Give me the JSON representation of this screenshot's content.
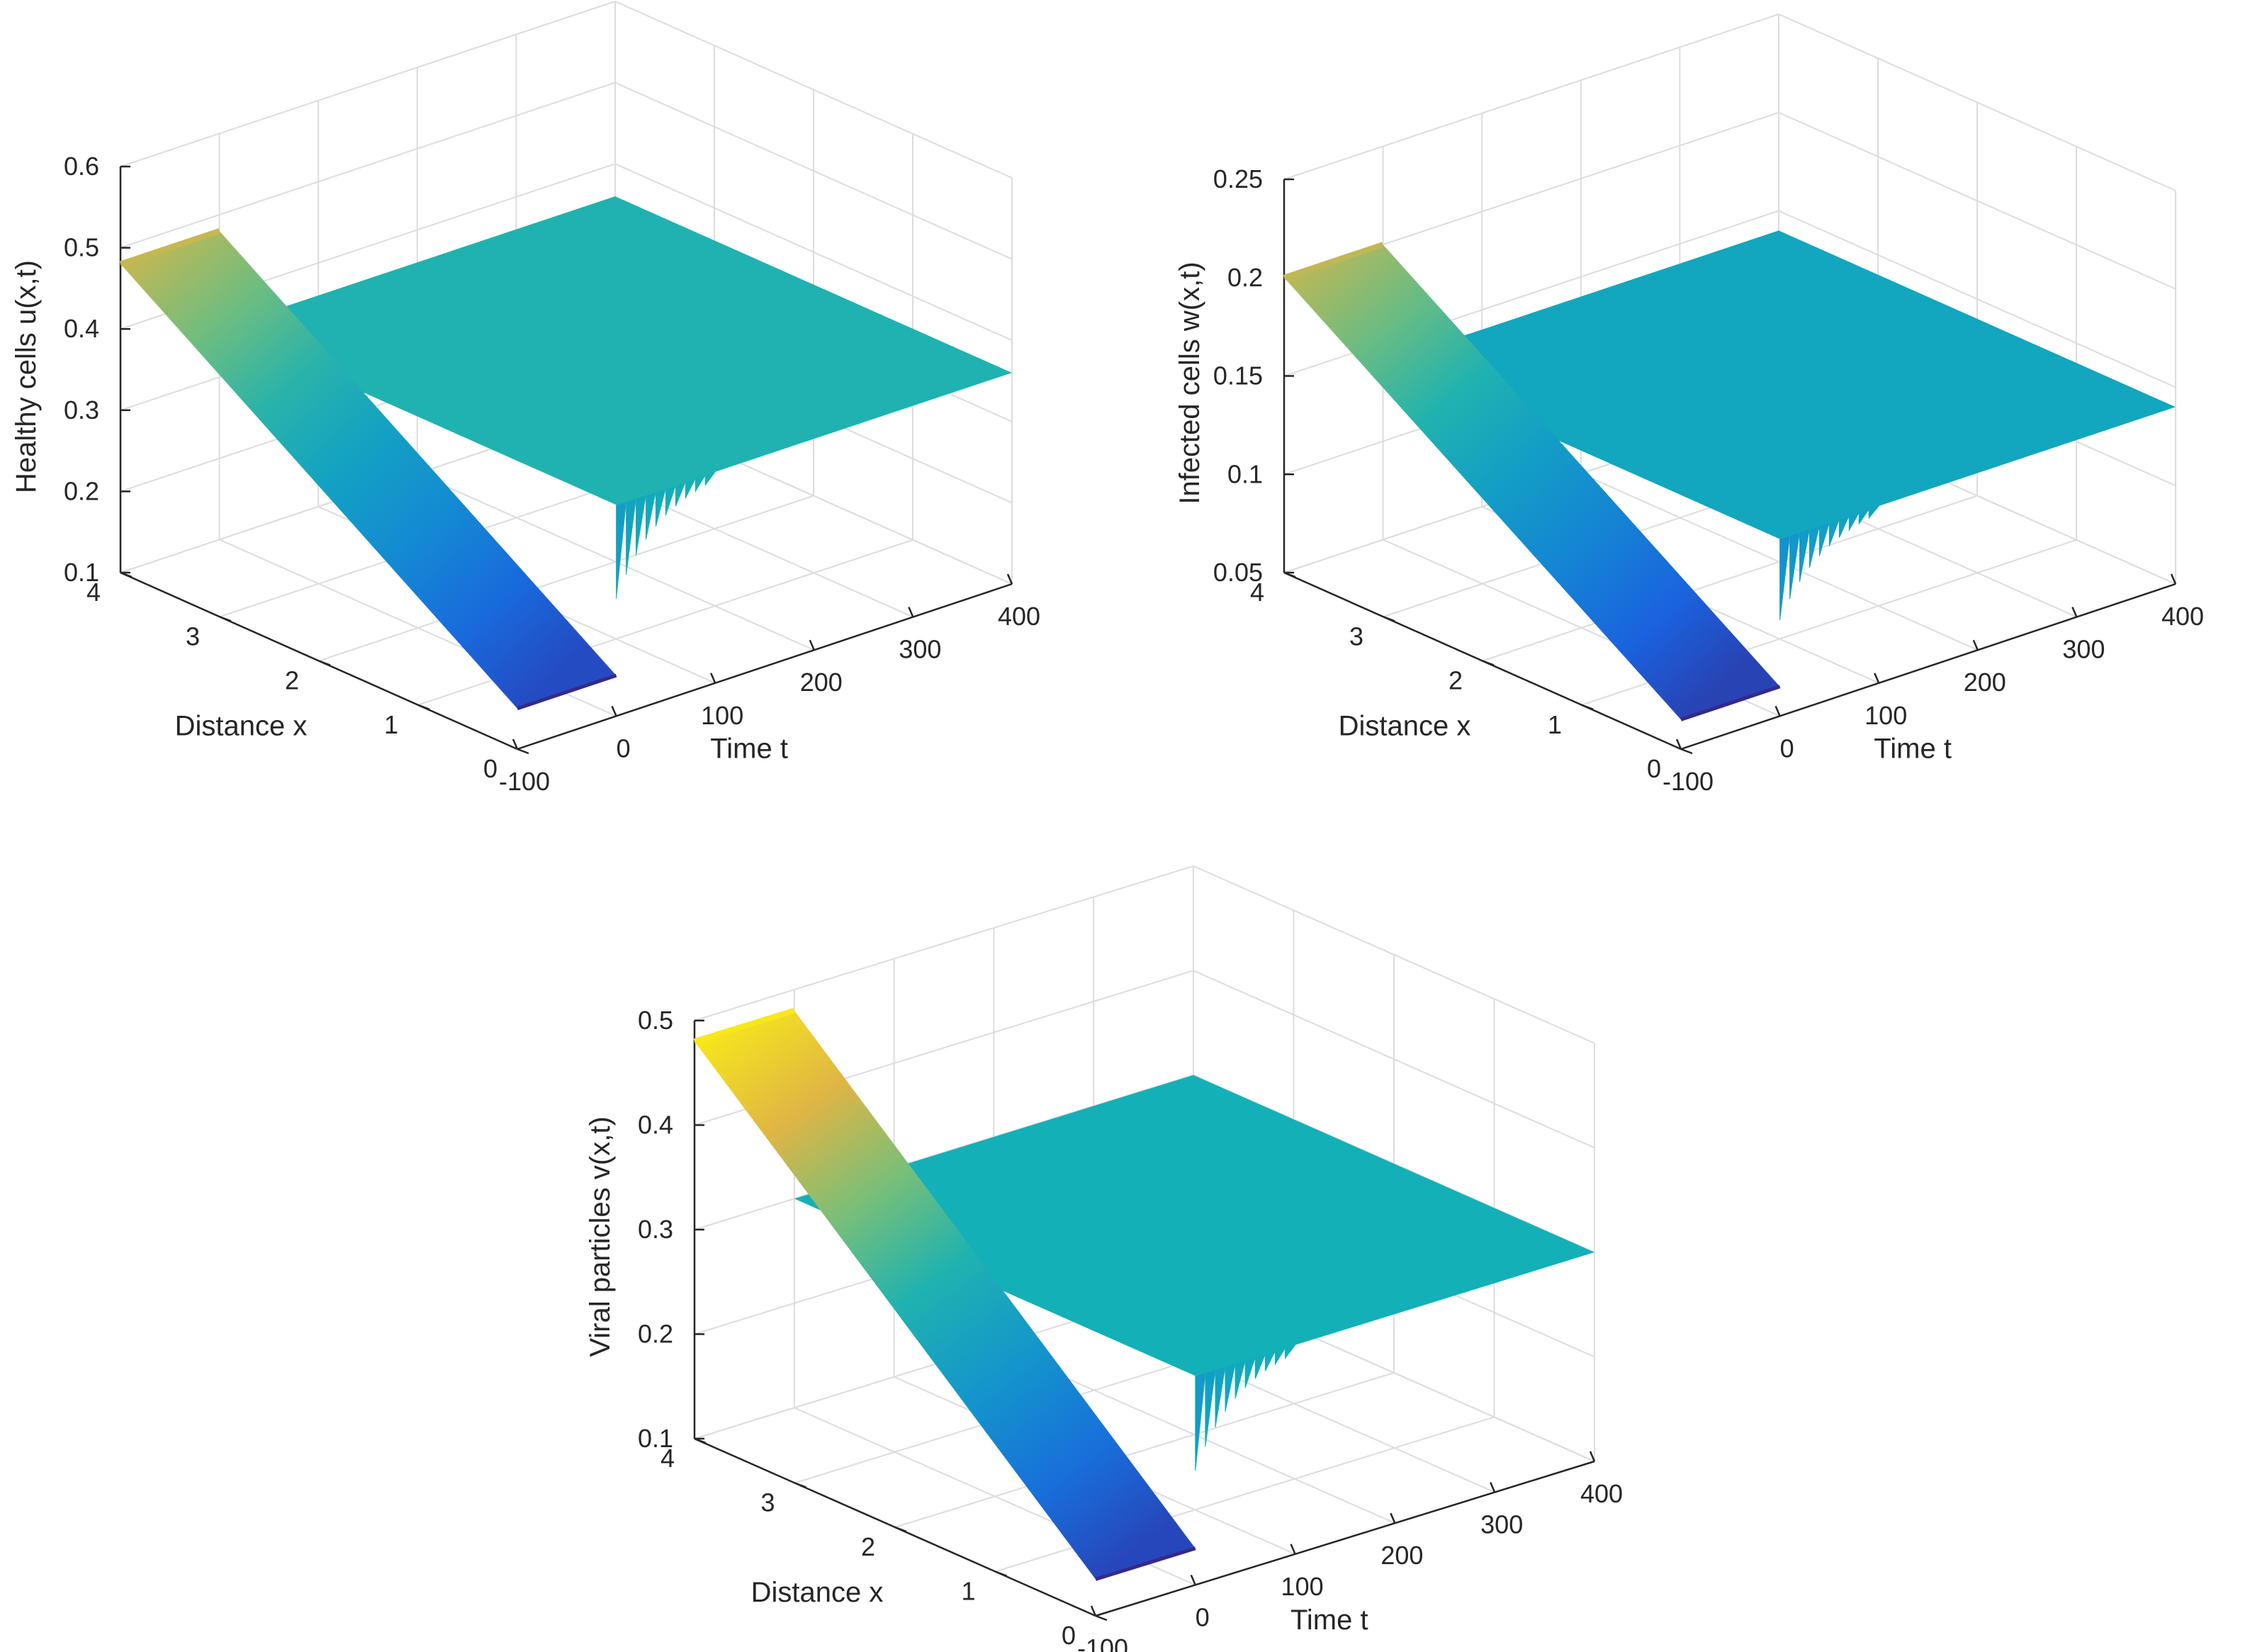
{
  "chart_data": [
    {
      "type": "surface",
      "title": "",
      "xlabel": "Distance x",
      "ylabel": "Time t",
      "zlabel": "Healthy cells u(x,t)",
      "xlim": [
        0,
        4
      ],
      "ylim": [
        -100,
        400
      ],
      "zlim": [
        0.1,
        0.6
      ],
      "x_ticks": [
        "0",
        "1",
        "2",
        "3",
        "4"
      ],
      "y_ticks": [
        "-100",
        "0",
        "100",
        "200",
        "300",
        "400"
      ],
      "z_ticks": [
        "0.1",
        "0.2",
        "0.3",
        "0.4",
        "0.5",
        "0.6"
      ],
      "grid": true,
      "colormap": "parula",
      "x_range": [
        0,
        4
      ],
      "t_range": [
        -100,
        400
      ],
      "pre_value_range": [
        0.15,
        0.48
      ],
      "transition_time": 0,
      "steady_value": 0.36,
      "oscillation_end_time": 100
    },
    {
      "type": "surface",
      "title": "",
      "xlabel": "Distance x",
      "ylabel": "Time t",
      "zlabel": "Infected cells  w(x,t)",
      "xlim": [
        0,
        4
      ],
      "ylim": [
        -100,
        400
      ],
      "zlim": [
        0.05,
        0.25
      ],
      "x_ticks": [
        "0",
        "1",
        "2",
        "3",
        "4"
      ],
      "y_ticks": [
        "-100",
        "0",
        "100",
        "200",
        "300",
        "400"
      ],
      "z_ticks": [
        "0.05",
        "0.1",
        "0.15",
        "0.2",
        "0.25"
      ],
      "grid": true,
      "colormap": "parula",
      "x_range": [
        0,
        4
      ],
      "t_range": [
        -100,
        400
      ],
      "pre_value_range": [
        0.065,
        0.2
      ],
      "transition_time": 0,
      "steady_value": 0.14,
      "oscillation_end_time": 100
    },
    {
      "type": "surface",
      "title": "",
      "xlabel": "Distance x",
      "ylabel": "Time t",
      "zlabel": "Viral particles v(x,t)",
      "xlim": [
        0,
        4
      ],
      "ylim": [
        -100,
        400
      ],
      "zlim": [
        0.1,
        0.5
      ],
      "x_ticks": [
        "0",
        "1",
        "2",
        "3",
        "4"
      ],
      "y_ticks": [
        "-100",
        "0",
        "100",
        "200",
        "300",
        "400"
      ],
      "z_ticks": [
        "0.1",
        "0.2",
        "0.3",
        "0.4",
        "0.5"
      ],
      "grid": true,
      "colormap": "parula",
      "x_range": [
        0,
        4
      ],
      "t_range": [
        -100,
        400
      ],
      "pre_value_range": [
        0.135,
        0.48
      ],
      "transition_time": 0,
      "steady_value": 0.3,
      "oscillation_end_time": 100
    }
  ],
  "colors": {
    "background": "#ffffff",
    "axis": "#262626",
    "grid": "#dcdcdc",
    "parula_low": "#352a87",
    "parula_high": "#f9fb0e"
  }
}
